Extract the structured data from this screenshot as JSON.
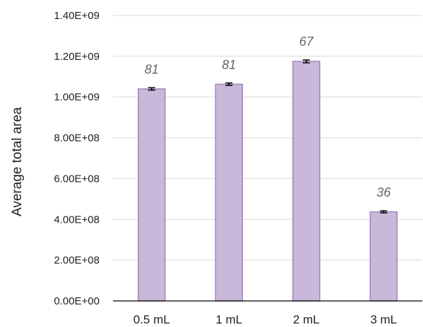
{
  "chart_data": {
    "type": "bar",
    "ylabel": "Average total area",
    "categories": [
      "0.5 mL",
      "1 mL",
      "2 mL",
      "3 mL"
    ],
    "values": [
      1040000000,
      1063000000,
      1175000000,
      437000000
    ],
    "errors": [
      6000000,
      6000000,
      7000000,
      5000000
    ],
    "data_labels": [
      "81",
      "81",
      "67",
      "36"
    ],
    "ylim": [
      0,
      1400000000
    ],
    "yticks": [
      0,
      200000000,
      400000000,
      600000000,
      800000000,
      1000000000,
      1200000000,
      1400000000
    ],
    "ytick_labels": [
      "0.00E+00",
      "2.00E+08",
      "4.00E+08",
      "6.00E+08",
      "8.00E+08",
      "1.00E+09",
      "1.20E+09",
      "1.40E+09"
    ],
    "grid": true,
    "legend": "none"
  },
  "colors": {
    "bar_fill": "#c9b8d9",
    "bar_stroke": "#9e86bd",
    "grid": "#d9d9d9",
    "axis": "#000000",
    "error_bar": "#000000",
    "data_label": "#666666"
  }
}
